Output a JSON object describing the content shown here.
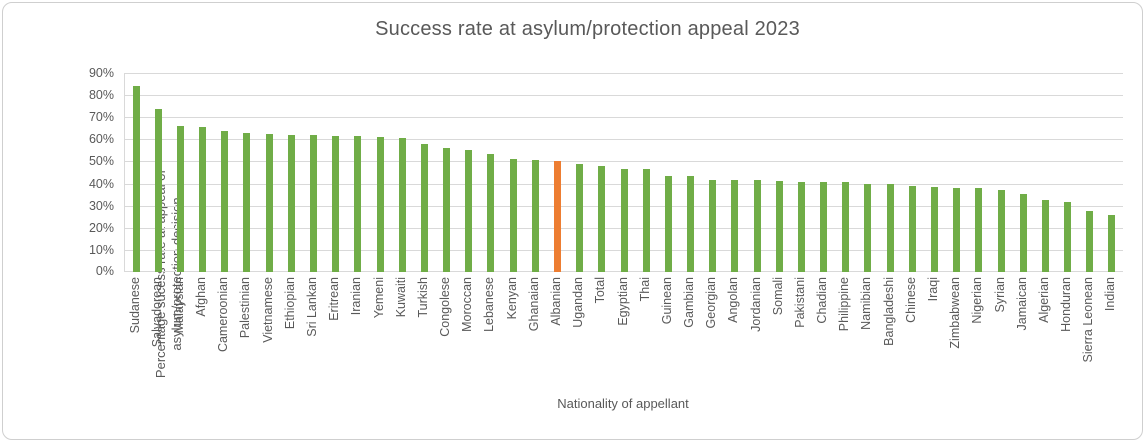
{
  "chart_data": {
    "type": "bar",
    "title": "Success rate at asylum/protection appeal 2023",
    "xlabel": "Nationality of appellant",
    "ylabel": "Percentage sucess rate at appeal of asylum/protection decision",
    "ylabel_lines": [
      "Percentage sucess rate at appeal of",
      "asylum/protection decision"
    ],
    "ylim": [
      0,
      90
    ],
    "ytick_step": 10,
    "ytick_suffix": "%",
    "grid": true,
    "legend": "none",
    "colors": {
      "bar": "#70AD47",
      "highlight": "#ED7D31",
      "gridline": "#D9D9D9",
      "text": "#595959"
    },
    "highlight_category": "Albanian",
    "categories": [
      "Sudanese",
      "Salvadorean",
      "Malaysian",
      "Afghan",
      "Cameroonian",
      "Palestinian",
      "Vietnamese",
      "Ethiopian",
      "Sri Lankan",
      "Eritrean",
      "Iranian",
      "Yemeni",
      "Kuwaiti",
      "Turkish",
      "Congolese",
      "Moroccan",
      "Lebanese",
      "Kenyan",
      "Ghanaian",
      "Albanian",
      "Ugandan",
      "Total",
      "Egyptian",
      "Thai",
      "Guinean",
      "Gambian",
      "Georgian",
      "Angolan",
      "Jordanian",
      "Somali",
      "Pakistani",
      "Chadian",
      "Philippine",
      "Namibian",
      "Bangladeshi",
      "Chinese",
      "Iraqi",
      "Zimbabwean",
      "Nigerian",
      "Syrian",
      "Jamaican",
      "Algerian",
      "Honduran",
      "Sierra Leonean",
      "Indian"
    ],
    "values": [
      84,
      73.5,
      66,
      65.5,
      64,
      63,
      62.5,
      62,
      62,
      61.5,
      61.5,
      61,
      60.5,
      58,
      56,
      55,
      53.5,
      51,
      50.5,
      50,
      49,
      48,
      46.5,
      46.5,
      43.5,
      43.5,
      41.5,
      41.5,
      41.5,
      41,
      40.5,
      40.5,
      40.5,
      40,
      40,
      39,
      38.5,
      38,
      38,
      37,
      35.5,
      32.5,
      31.5,
      27.5,
      26
    ]
  }
}
